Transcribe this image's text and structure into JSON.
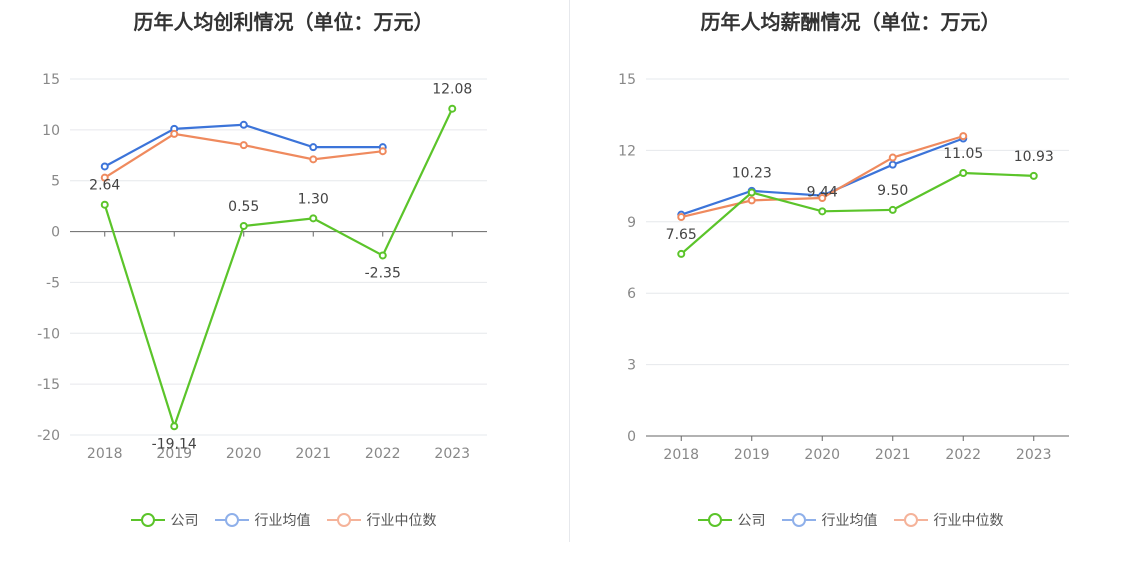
{
  "chart_data": [
    {
      "type": "line",
      "title": "历年人均创利情况（单位：万元）",
      "categories": [
        "2018",
        "2019",
        "2020",
        "2021",
        "2022",
        "2023"
      ],
      "ylim": [
        -20,
        15
      ],
      "yticks": [
        15,
        10,
        5,
        0,
        -5,
        -10,
        -15,
        -20
      ],
      "grid": true,
      "legend_position": "bottom",
      "series": [
        {
          "name": "公司",
          "color": "#5bc42a",
          "values": [
            2.64,
            -19.14,
            0.55,
            1.3,
            -2.35,
            12.08
          ],
          "labels": [
            "2.64",
            "-19.14",
            "0.55",
            "1.30",
            "-2.35",
            "12.08"
          ]
        },
        {
          "name": "行业均值",
          "color": "#3c74d9",
          "values": [
            6.4,
            10.1,
            10.5,
            8.3,
            8.3,
            null
          ]
        },
        {
          "name": "行业中位数",
          "color": "#ef8a5e",
          "values": [
            5.3,
            9.6,
            8.5,
            7.1,
            7.9,
            null
          ]
        }
      ]
    },
    {
      "type": "line",
      "title": "历年人均薪酬情况（单位：万元）",
      "categories": [
        "2018",
        "2019",
        "2020",
        "2021",
        "2022",
        "2023"
      ],
      "ylim": [
        0,
        15
      ],
      "yticks": [
        15,
        12,
        9,
        6,
        3,
        0
      ],
      "grid": true,
      "legend_position": "bottom",
      "series": [
        {
          "name": "公司",
          "color": "#5bc42a",
          "values": [
            7.65,
            10.23,
            9.44,
            9.5,
            11.05,
            10.93
          ],
          "labels": [
            "7.65",
            "10.23",
            "9.44",
            "9.50",
            "11.05",
            "10.93"
          ]
        },
        {
          "name": "行业均值",
          "color": "#3c74d9",
          "values": [
            9.3,
            10.3,
            10.1,
            11.4,
            12.5,
            null
          ]
        },
        {
          "name": "行业中位数",
          "color": "#ef8a5e",
          "values": [
            9.2,
            9.9,
            10.0,
            11.7,
            12.6,
            null
          ]
        }
      ]
    }
  ],
  "legend_colors": {
    "company": "#5bc42a",
    "avg": "#8fb0ea",
    "median": "#f5b39a"
  }
}
